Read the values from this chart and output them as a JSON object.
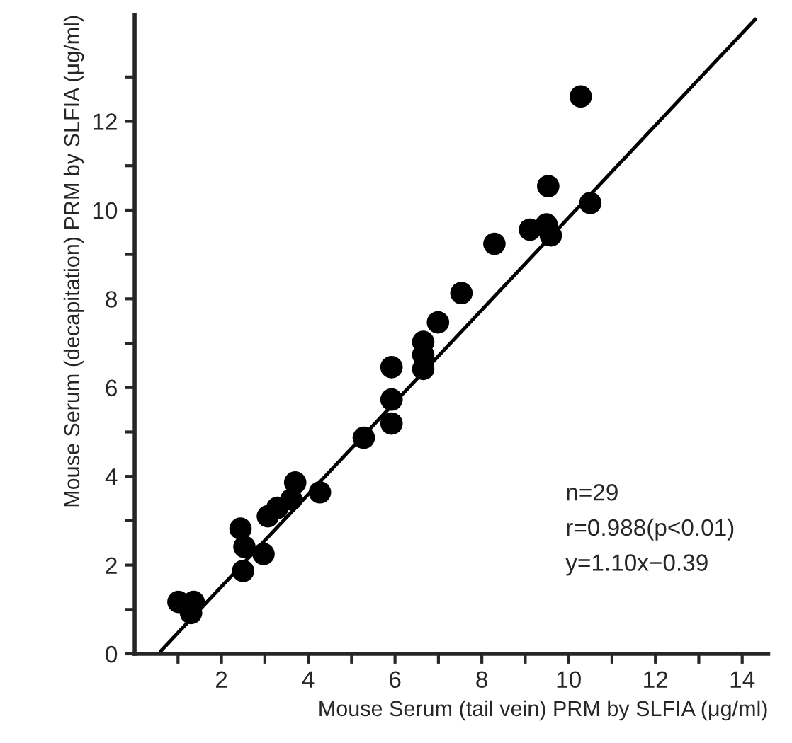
{
  "chart_data": {
    "type": "scatter",
    "xlabel": "Mouse Serum (tail vein) PRM by SLFIA (μg/ml)",
    "ylabel": "Mouse Serum (decapitation) PRM by SLFIA (μg/ml)",
    "annotations": [
      "n=29",
      "r=0.988(p<0.01)",
      "y=1.10x−0.39"
    ],
    "xlim": [
      0,
      14.6
    ],
    "ylim": [
      0,
      14.4
    ],
    "xticks": [
      {
        "value": 1,
        "label": null
      },
      2,
      {
        "value": 3,
        "label": null
      },
      4,
      {
        "value": 5,
        "label": null
      },
      6,
      {
        "value": 7,
        "label": null
      },
      8,
      {
        "value": 9,
        "label": null
      },
      10,
      {
        "value": 11,
        "label": null
      },
      12,
      {
        "value": 13,
        "label": null
      },
      14
    ],
    "yticks": [
      0,
      {
        "value": 1,
        "label": null
      },
      2,
      {
        "value": 3,
        "label": null
      },
      4,
      {
        "value": 5,
        "label": null
      },
      6,
      {
        "value": 7,
        "label": null
      },
      8,
      {
        "value": 9,
        "label": null
      },
      10,
      {
        "value": 11,
        "label": null
      },
      12,
      {
        "value": 13,
        "label": null
      }
    ],
    "grid": false,
    "legend": false,
    "series": [
      {
        "marker": "circle",
        "color": "#000000",
        "x": [
          1.01,
          1.36,
          1.3,
          2.44,
          2.53,
          2.5,
          2.97,
          3.07,
          3.29,
          3.61,
          3.7,
          4.27,
          5.28,
          5.92,
          5.92,
          5.92,
          6.65,
          6.65,
          6.65,
          6.99,
          7.53,
          8.29,
          9.11,
          9.49,
          9.59,
          9.53,
          10.5,
          10.28
        ],
        "values": [
          1.17,
          1.17,
          0.92,
          2.82,
          2.41,
          1.87,
          2.25,
          3.1,
          3.29,
          3.48,
          3.86,
          3.64,
          4.87,
          5.73,
          5.19,
          6.46,
          7.03,
          6.74,
          6.42,
          7.47,
          8.13,
          9.24,
          9.56,
          9.68,
          9.43,
          10.54,
          10.16,
          12.56
        ]
      },
      {
        "type": "line",
        "marker": "none",
        "color": "#000000",
        "x": [
          0.6,
          14.3
        ],
        "values": [
          0.06,
          14.3
        ]
      }
    ]
  }
}
